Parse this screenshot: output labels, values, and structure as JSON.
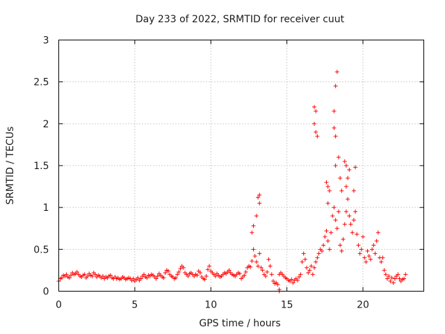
{
  "chart_data": {
    "type": "scatter",
    "title": "Day 233 of 2022, SRMTID for receiver cuut",
    "xlabel": "GPS time / hours",
    "ylabel": "SRMTID / TECUs",
    "xlim": [
      0,
      24
    ],
    "ylim": [
      0,
      3
    ],
    "xticks": [
      0,
      5,
      10,
      15,
      20
    ],
    "xtick_labels": [
      "0",
      "5",
      "10",
      "15",
      "20"
    ],
    "yticks": [
      0,
      0.5,
      1,
      1.5,
      2,
      2.5,
      3
    ],
    "ytick_labels": [
      "0",
      "0.5",
      "1",
      "1.5",
      "2",
      "2.5",
      "3"
    ],
    "grid": true,
    "marker": "+",
    "color": "#ff0000",
    "series": [
      {
        "name": "SRMTID",
        "x": [
          0.0,
          0.1,
          0.2,
          0.3,
          0.4,
          0.5,
          0.6,
          0.7,
          0.8,
          0.9,
          1.0,
          1.1,
          1.2,
          1.3,
          1.4,
          1.5,
          1.6,
          1.7,
          1.8,
          1.9,
          2.0,
          2.1,
          2.2,
          2.3,
          2.4,
          2.5,
          2.6,
          2.7,
          2.8,
          2.9,
          3.0,
          3.1,
          3.2,
          3.3,
          3.4,
          3.5,
          3.6,
          3.7,
          3.8,
          3.9,
          4.0,
          4.1,
          4.2,
          4.3,
          4.4,
          4.5,
          4.6,
          4.7,
          4.8,
          4.9,
          5.0,
          5.1,
          5.2,
          5.3,
          5.4,
          5.5,
          5.6,
          5.7,
          5.8,
          5.9,
          6.0,
          6.1,
          6.2,
          6.3,
          6.4,
          6.5,
          6.6,
          6.7,
          6.8,
          6.9,
          7.0,
          7.1,
          7.2,
          7.3,
          7.4,
          7.5,
          7.6,
          7.7,
          7.8,
          7.9,
          8.0,
          8.1,
          8.2,
          8.3,
          8.4,
          8.5,
          8.6,
          8.7,
          8.8,
          8.9,
          9.0,
          9.1,
          9.2,
          9.3,
          9.4,
          9.5,
          9.6,
          9.7,
          9.8,
          9.9,
          10.0,
          10.1,
          10.2,
          10.3,
          10.4,
          10.5,
          10.6,
          10.7,
          10.8,
          10.9,
          11.0,
          11.1,
          11.2,
          11.3,
          11.4,
          11.5,
          11.6,
          11.7,
          11.8,
          11.9,
          12.0,
          12.1,
          12.2,
          12.3,
          12.4,
          12.5,
          12.6,
          12.7,
          12.8,
          12.9,
          13.0,
          13.1,
          13.2,
          13.3,
          13.4,
          13.5,
          13.6,
          13.7,
          13.8,
          13.9,
          14.0,
          14.1,
          14.2,
          14.3,
          14.4,
          14.5,
          14.6,
          14.7,
          14.8,
          14.9,
          15.0,
          15.1,
          15.2,
          15.3,
          15.4,
          15.5,
          15.6,
          15.7,
          15.8,
          15.9,
          16.0,
          16.1,
          16.2,
          16.3,
          16.4,
          16.5,
          16.6,
          16.7,
          16.8,
          16.9,
          17.0,
          17.1,
          17.2,
          17.3,
          17.4,
          17.5,
          17.6,
          17.7,
          17.8,
          17.9,
          18.0,
          18.1,
          18.2,
          18.3,
          18.4,
          18.5,
          18.6,
          18.7,
          18.8,
          18.9,
          19.0,
          19.1,
          19.2,
          19.3,
          19.4,
          19.5,
          19.6,
          19.7,
          19.8,
          19.9,
          20.0,
          20.1,
          20.2,
          20.3,
          20.4,
          20.5,
          20.6,
          20.7,
          20.8,
          20.9,
          21.0,
          21.1,
          21.2,
          21.3,
          21.4,
          21.5,
          21.6,
          21.7,
          21.8,
          21.9,
          22.0,
          22.1,
          22.2,
          22.3,
          22.4,
          22.5,
          22.6,
          22.7,
          22.8,
          16.8,
          16.8,
          16.9,
          16.9,
          17.0,
          17.6,
          17.7,
          17.7,
          17.8,
          18.1,
          18.1,
          18.2,
          18.2,
          18.3,
          18.2,
          18.4,
          18.5,
          18.6,
          18.8,
          18.9,
          18.9,
          19.0,
          19.1,
          19.4,
          19.5,
          13.1,
          13.2,
          13.2,
          13.0,
          12.8,
          12.7,
          14.5,
          14.5
        ],
        "y": [
          0.12,
          0.15,
          0.16,
          0.19,
          0.18,
          0.2,
          0.17,
          0.16,
          0.19,
          0.22,
          0.2,
          0.21,
          0.23,
          0.2,
          0.18,
          0.17,
          0.19,
          0.2,
          0.16,
          0.18,
          0.21,
          0.19,
          0.18,
          0.22,
          0.2,
          0.17,
          0.19,
          0.18,
          0.16,
          0.18,
          0.15,
          0.17,
          0.16,
          0.18,
          0.19,
          0.16,
          0.15,
          0.17,
          0.15,
          0.16,
          0.14,
          0.15,
          0.17,
          0.16,
          0.14,
          0.15,
          0.16,
          0.15,
          0.13,
          0.15,
          0.12,
          0.14,
          0.16,
          0.13,
          0.15,
          0.18,
          0.2,
          0.17,
          0.16,
          0.19,
          0.18,
          0.2,
          0.19,
          0.17,
          0.15,
          0.18,
          0.21,
          0.19,
          0.17,
          0.16,
          0.22,
          0.25,
          0.24,
          0.2,
          0.18,
          0.17,
          0.15,
          0.16,
          0.2,
          0.23,
          0.27,
          0.3,
          0.28,
          0.22,
          0.2,
          0.18,
          0.21,
          0.22,
          0.2,
          0.18,
          0.2,
          0.19,
          0.24,
          0.22,
          0.17,
          0.15,
          0.14,
          0.18,
          0.26,
          0.3,
          0.24,
          0.22,
          0.2,
          0.18,
          0.21,
          0.19,
          0.17,
          0.18,
          0.2,
          0.22,
          0.21,
          0.23,
          0.25,
          0.22,
          0.2,
          0.19,
          0.18,
          0.2,
          0.22,
          0.21,
          0.15,
          0.17,
          0.19,
          0.23,
          0.28,
          0.3,
          0.29,
          0.36,
          0.5,
          0.42,
          0.35,
          0.3,
          0.45,
          0.28,
          0.25,
          0.2,
          0.18,
          0.23,
          0.38,
          0.3,
          0.2,
          0.12,
          0.09,
          0.1,
          0.08,
          0.2,
          0.22,
          0.2,
          0.18,
          0.16,
          0.15,
          0.13,
          0.12,
          0.14,
          0.1,
          0.13,
          0.15,
          0.13,
          0.17,
          0.2,
          0.35,
          0.45,
          0.38,
          0.28,
          0.22,
          0.25,
          0.3,
          0.2,
          0.28,
          0.35,
          0.4,
          0.45,
          0.5,
          0.48,
          0.55,
          0.65,
          0.72,
          0.6,
          0.5,
          0.7,
          0.9,
          1.0,
          0.85,
          0.75,
          0.95,
          0.55,
          0.48,
          0.62,
          0.8,
          0.95,
          1.1,
          0.9,
          0.8,
          0.7,
          0.85,
          0.95,
          0.68,
          0.55,
          0.45,
          0.5,
          0.65,
          0.4,
          0.35,
          0.48,
          0.42,
          0.38,
          0.5,
          0.55,
          0.45,
          0.6,
          0.7,
          0.4,
          0.35,
          0.4,
          0.25,
          0.2,
          0.15,
          0.18,
          0.12,
          0.16,
          0.1,
          0.15,
          0.18,
          0.2,
          0.15,
          0.12,
          0.14,
          0.15,
          0.2,
          2.2,
          2.0,
          2.15,
          1.9,
          1.85,
          1.3,
          1.25,
          1.05,
          1.2,
          2.15,
          1.95,
          1.85,
          1.5,
          2.62,
          2.45,
          1.6,
          1.35,
          1.2,
          1.55,
          1.5,
          1.25,
          1.35,
          1.45,
          1.2,
          1.48,
          1.12,
          1.15,
          1.05,
          0.9,
          0.78,
          0.7,
          0.0,
          0.02
        ]
      }
    ]
  }
}
